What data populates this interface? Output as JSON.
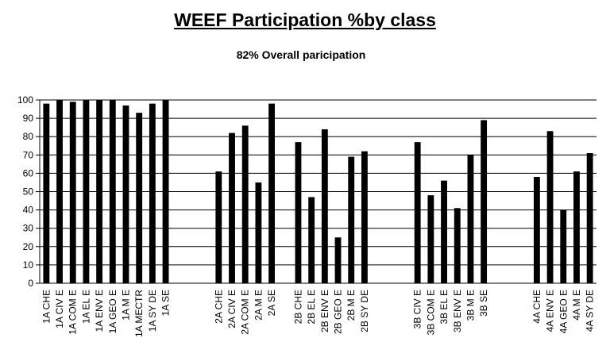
{
  "chart_data": {
    "type": "bar",
    "title": "WEEF Participation %by class",
    "subtitle": "82% Overall paricipation",
    "xlabel": "",
    "ylabel": "",
    "ylim": [
      0,
      100
    ],
    "yticks": [
      0,
      10,
      20,
      30,
      40,
      50,
      60,
      70,
      80,
      90,
      100
    ],
    "grid": true,
    "legend": "none",
    "bar_color": "#000000",
    "categories": [
      "1A CHE",
      "1A CIV E",
      "1A COM E",
      "1A EL E",
      "1A ENV E",
      "1A GEO E",
      "1A M E",
      "1A MECTR",
      "1A SY DE",
      "1A SE",
      "",
      "",
      "",
      "2A CHE",
      "2A CIV E",
      "2A COM E",
      "2A M E",
      "2A SE",
      "",
      "2B CHE",
      "2B EL E",
      "2B ENV E",
      "2B GEO E",
      "2B M E",
      "2B SY DE",
      "",
      "",
      "",
      "3B CIV E",
      "3B COM E",
      "3B EL E",
      "3B ENV E",
      "3B M E",
      "3B SE",
      "",
      "",
      "",
      "4A CHE",
      "4A ENV E",
      "4A GEO E",
      "4A M E",
      "4A SY DE"
    ],
    "values": [
      98,
      100,
      99,
      100,
      100,
      100,
      97,
      93,
      98,
      100,
      null,
      null,
      null,
      61,
      82,
      86,
      55,
      98,
      null,
      77,
      47,
      84,
      25,
      69,
      72,
      null,
      null,
      null,
      77,
      48,
      56,
      41,
      70,
      89,
      null,
      null,
      null,
      58,
      83,
      40,
      61,
      71
    ]
  }
}
